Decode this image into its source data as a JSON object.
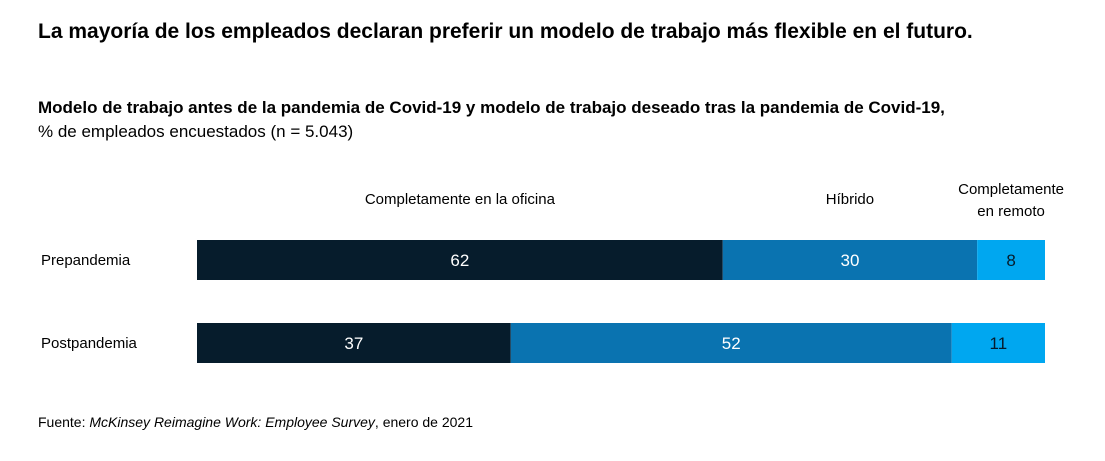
{
  "title": "La mayoría de los empleados declaran preferir un modelo de trabajo más flexible en el futuro.",
  "subtitle": "Modelo de trabajo antes de la pandemia de Covid-19 y modelo de trabajo deseado tras la pandemia de Covid-19,",
  "subtitle_detail": "% de empleados encuestados (n = 5.043)",
  "source": {
    "prefix": "Fuente: ",
    "publication": "McKinsey Reimagine Work: Employee Survey",
    "suffix": ", enero de 2021"
  },
  "colors": {
    "oficina": "#061c2c",
    "hibrido": "#0a73b0",
    "remoto": "#00a7f0"
  },
  "chart_data": {
    "type": "bar",
    "orientation": "horizontal",
    "stacked": true,
    "categories": [
      "Prepandemia",
      "Postpandemia"
    ],
    "series": [
      {
        "name": "Completamente en la oficina",
        "values": [
          62,
          37
        ]
      },
      {
        "name": "Híbrido",
        "values": [
          30,
          52
        ]
      },
      {
        "name": "Completamente en remoto",
        "values": [
          8,
          11
        ]
      }
    ],
    "unit": "%",
    "legend": "top"
  }
}
